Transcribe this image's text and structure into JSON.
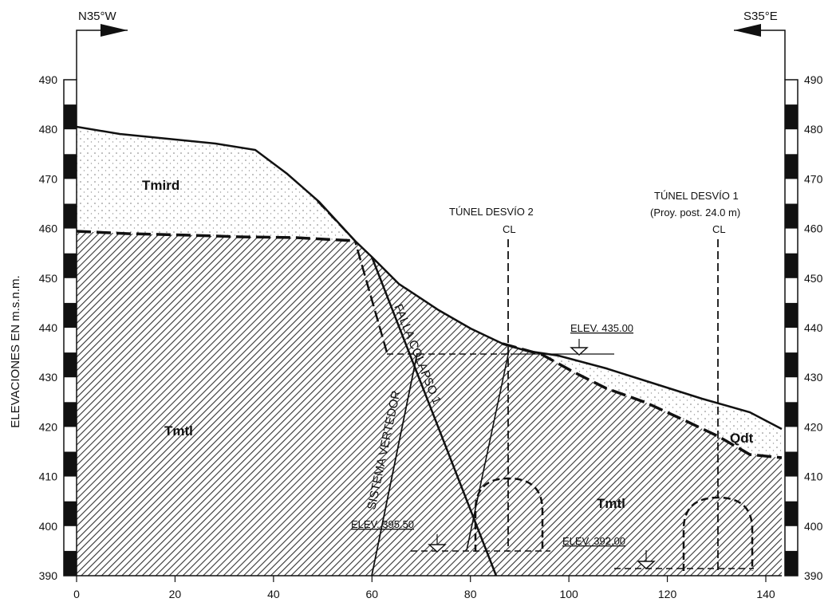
{
  "orientation": {
    "left": "N35°W",
    "right": "S35°E"
  },
  "y_axis": {
    "label": "ELEVACIONES EN m.s.n.m.",
    "range": [
      390,
      490
    ],
    "ticks": [
      "490",
      "480",
      "470",
      "460",
      "450",
      "440",
      "430",
      "420",
      "410",
      "400",
      "390"
    ]
  },
  "x_axis": {
    "range": [
      0,
      140
    ],
    "ticks": [
      "0",
      "20",
      "40",
      "60",
      "80",
      "100",
      "120",
      "140"
    ]
  },
  "units": {
    "upper": "Tmird",
    "lower_left": "Tmtl",
    "lower_right": "Tmtl",
    "alluvium": "Qdt"
  },
  "faults": {
    "fault_1": "FALLA COLAPSO 1",
    "fault_2": "SISTEMA VERTEDOR"
  },
  "tunnels": {
    "t2": {
      "title": "TÚNEL DESVÍO 2",
      "cl": "CL",
      "crest_elevation": "ELEV. 435.00",
      "invert_elevation": "ELEV. 395.50"
    },
    "t1": {
      "title": "TÚNEL DESVÍO 1",
      "note": "(Proy. post. 24.0 m)",
      "cl": "CL",
      "invert_elevation": "ELEV. 392.00"
    }
  },
  "colors": {
    "ink": "#111111",
    "background": "#ffffff"
  }
}
